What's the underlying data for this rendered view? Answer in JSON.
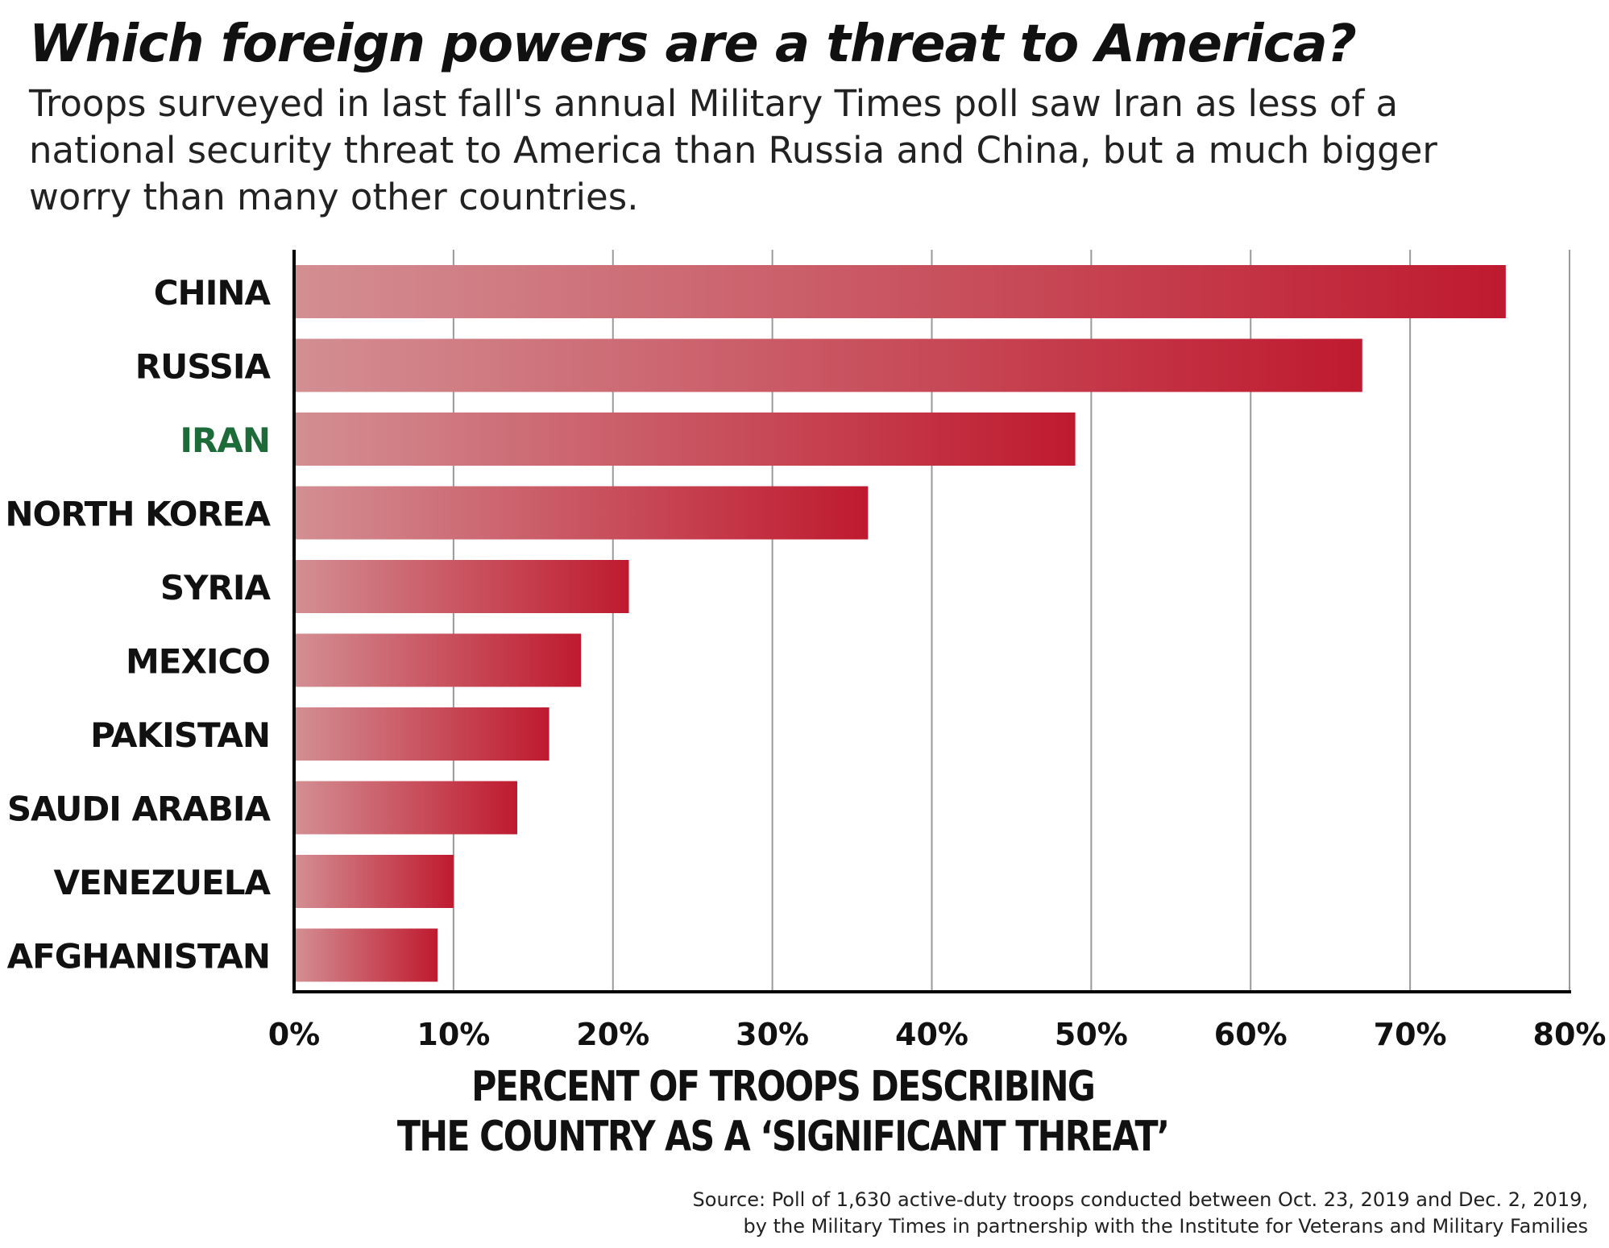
{
  "title": "Which foreign powers are a threat to America?",
  "subtitle": "Troops surveyed in last fall's annual Military Times poll saw Iran as less of a national security threat to America than Russia and China, but a much bigger worry than many other countries.",
  "chart_data": {
    "type": "bar",
    "orientation": "horizontal",
    "categories": [
      "CHINA",
      "RUSSIA",
      "IRAN",
      "NORTH KOREA",
      "SYRIA",
      "MEXICO",
      "PAKISTAN",
      "SAUDI ARABIA",
      "VENEZUELA",
      "AFGHANISTAN"
    ],
    "values": [
      76,
      67,
      49,
      36,
      21,
      18,
      16,
      14,
      10,
      9
    ],
    "xlabel": [
      "PERCENT OF TROOPS DESCRIBING",
      "THE COUNTRY AS A ‘SIGNIFICANT THREAT’"
    ],
    "ylabel": "",
    "xlim": [
      0,
      80
    ],
    "xticks": [
      "0%",
      "10%",
      "20%",
      "30%",
      "40%",
      "50%",
      "60%",
      "70%",
      "80%"
    ],
    "grid": true,
    "legend": "none",
    "highlight_category": "IRAN",
    "colors": {
      "bar_start": "#d38f93",
      "bar_end": "#bf1a2f",
      "highlight_label": "#1e6b3a",
      "label": "#111111",
      "grid": "#9a9a9a"
    }
  },
  "source": [
    "Source: Poll of 1,630 active-duty troops conducted between Oct. 23, 2019 and Dec. 2, 2019,",
    "by the Military Times in partnership with the Institute for Veterans and Military Families"
  ]
}
